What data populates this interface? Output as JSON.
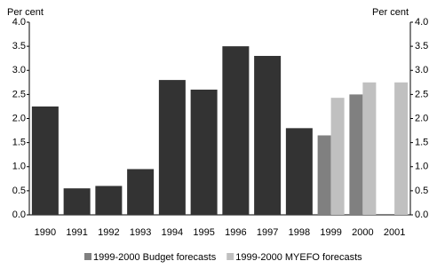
{
  "chart_data": {
    "type": "bar",
    "ylabel": "Per cent",
    "y2label": "Per cent",
    "categories": [
      "1990",
      "1991",
      "1992",
      "1993",
      "1994",
      "1995",
      "1996",
      "1997",
      "1998",
      "1999",
      "2000",
      "2001"
    ],
    "series": [
      {
        "color": "#333333",
        "values": [
          2.25,
          0.55,
          0.6,
          0.95,
          2.8,
          2.6,
          3.5,
          3.3,
          1.8,
          null,
          null,
          null
        ]
      },
      {
        "name": "1999-2000 Budget forecasts",
        "color": "#808080",
        "values": [
          null,
          null,
          null,
          null,
          null,
          null,
          null,
          null,
          null,
          1.65,
          2.5,
          null
        ]
      },
      {
        "name": "1999-2000 MYEFO forecasts",
        "color": "#c0c0c0",
        "values": [
          null,
          null,
          null,
          null,
          null,
          null,
          null,
          null,
          null,
          2.43,
          2.75,
          2.75
        ]
      }
    ],
    "ylim": [
      0,
      4
    ],
    "yticks": [
      {
        "value": 0,
        "label": "0.0"
      },
      {
        "value": 0.5,
        "label": "0.5"
      },
      {
        "value": 1,
        "label": "1.0"
      },
      {
        "value": 1.5,
        "label": "1.5"
      },
      {
        "value": 2,
        "label": "2.0"
      },
      {
        "value": 2.5,
        "label": "2.5"
      },
      {
        "value": 3,
        "label": "3.0"
      },
      {
        "value": 3.5,
        "label": "3.5"
      },
      {
        "value": 4,
        "label": "4.0"
      }
    ],
    "y2lim": [
      0,
      4
    ],
    "y2ticks": [
      {
        "value": 0,
        "label": "0.0"
      },
      {
        "value": 0.5,
        "label": "0.5"
      },
      {
        "value": 1,
        "label": "1.0"
      },
      {
        "value": 1.5,
        "label": "1.5"
      },
      {
        "value": 2,
        "label": "2.0"
      },
      {
        "value": 2.5,
        "label": "2.5"
      },
      {
        "value": 3,
        "label": "3.0"
      },
      {
        "value": 3.5,
        "label": "3.5"
      },
      {
        "value": 4,
        "label": "4.0"
      }
    ],
    "legend": "bottom"
  }
}
